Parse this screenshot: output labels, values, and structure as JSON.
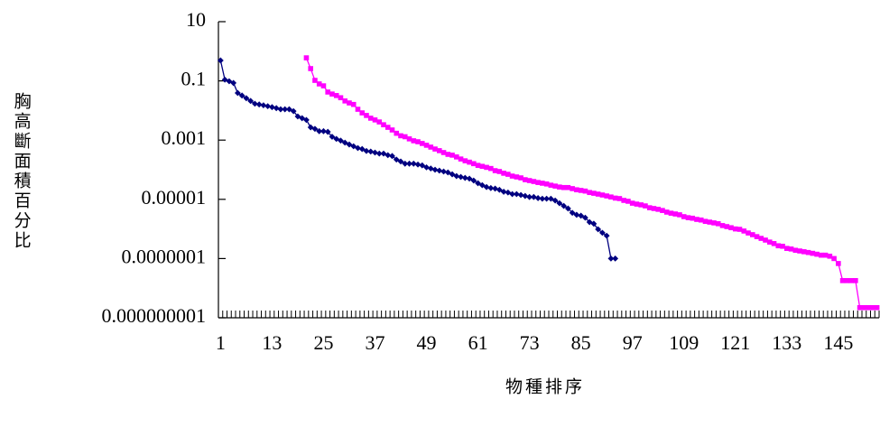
{
  "chart_data": {
    "type": "line",
    "y_label": "胸高斷面積百分比",
    "x_label": "物種排序",
    "log_y": true,
    "ylim": [
      1e-09,
      10
    ],
    "yticks": [
      10,
      0.1,
      0.001,
      1e-05,
      {
        "value": 1e-07,
        "label": "0.0000001"
      },
      {
        "value": 1e-09,
        "label": "0.000000001"
      }
    ],
    "categories": [
      "1",
      null,
      null,
      null,
      null,
      null,
      null,
      null,
      null,
      null,
      null,
      null,
      "13",
      null,
      null,
      null,
      null,
      null,
      null,
      null,
      null,
      null,
      null,
      null,
      "25",
      null,
      null,
      null,
      null,
      null,
      null,
      null,
      null,
      null,
      null,
      null,
      "37",
      null,
      null,
      null,
      null,
      null,
      null,
      null,
      null,
      null,
      null,
      null,
      "49",
      null,
      null,
      null,
      null,
      null,
      null,
      null,
      null,
      null,
      null,
      null,
      "61",
      null,
      null,
      null,
      null,
      null,
      null,
      null,
      null,
      null,
      null,
      null,
      "73",
      null,
      null,
      null,
      null,
      null,
      null,
      null,
      null,
      null,
      null,
      null,
      "85",
      null,
      null,
      null,
      null,
      null,
      null,
      null,
      null,
      null,
      null,
      null,
      "97",
      null,
      null,
      null,
      null,
      null,
      null,
      null,
      null,
      null,
      null,
      null,
      "109",
      null,
      null,
      null,
      null,
      null,
      null,
      null,
      null,
      null,
      null,
      null,
      "121",
      null,
      null,
      null,
      null,
      null,
      null,
      null,
      null,
      null,
      null,
      null,
      "133",
      null,
      null,
      null,
      null,
      null,
      null,
      null,
      null,
      null,
      null,
      null,
      "145",
      null,
      null,
      null,
      null,
      null,
      null,
      null,
      null,
      null
    ],
    "series": [
      {
        "color": "#000080",
        "marker": "diamond",
        "values": [
          0.49,
          0.11,
          0.097,
          0.085,
          0.039,
          0.032,
          0.026,
          0.021,
          0.017,
          0.016,
          0.015,
          0.014,
          0.013,
          0.012,
          0.011,
          0.011,
          0.011,
          0.0095,
          0.0063,
          0.0055,
          0.0048,
          0.0027,
          0.0024,
          0.002,
          0.002,
          0.0019,
          0.0013,
          0.0011,
          0.00096,
          0.00082,
          0.00071,
          0.00062,
          0.00054,
          0.0005,
          0.00043,
          0.00041,
          0.00038,
          0.00035,
          0.00035,
          0.00031,
          0.00029,
          0.00022,
          0.00019,
          0.00016,
          0.00016,
          0.00016,
          0.00015,
          0.00014,
          0.00012,
          0.00011,
          0.0001,
          9.3e-05,
          8.7e-05,
          8.1e-05,
          7e-05,
          6.1e-05,
          5.7e-05,
          5.3e-05,
          5e-05,
          4.3e-05,
          3.5e-05,
          3e-05,
          2.6e-05,
          2.4e-05,
          2.3e-05,
          2.1e-05,
          1.8e-05,
          1.7e-05,
          1.5e-05,
          1.5e-05,
          1.4e-05,
          1.3e-05,
          1.2e-05,
          1.2e-05,
          1.1e-05,
          1.05e-05,
          1.05e-05,
          1.05e-05,
          9.1e-06,
          7.4e-06,
          6e-06,
          4.9e-06,
          3.5e-06,
          3e-06,
          2.8e-06,
          2.4e-06,
          1.7e-06,
          1.5e-06,
          9.7e-07,
          7.4e-07,
          5.9e-07,
          1e-07,
          1e-07,
          null,
          null,
          null,
          null,
          null,
          null,
          null,
          null,
          null,
          null,
          null,
          null,
          null,
          null,
          null,
          null,
          null,
          null,
          null,
          null,
          null,
          null,
          null,
          null,
          null,
          null,
          null,
          null,
          null,
          null,
          null,
          null,
          null,
          null,
          null,
          null,
          null,
          null,
          null,
          null,
          null,
          null,
          null,
          null,
          null,
          null,
          null,
          null,
          null,
          null,
          null,
          null,
          null,
          null,
          null,
          null,
          null,
          null,
          null,
          null,
          null
        ]
      },
      {
        "color": "#ff00ff",
        "marker": "square",
        "values": [
          null,
          null,
          null,
          null,
          null,
          null,
          null,
          null,
          null,
          null,
          null,
          null,
          null,
          null,
          null,
          null,
          null,
          null,
          null,
          null,
          0.6,
          0.26,
          0.104,
          0.079,
          0.068,
          0.042,
          0.036,
          0.032,
          0.027,
          0.021,
          0.018,
          0.016,
          0.011,
          0.0083,
          0.0068,
          0.0055,
          0.0048,
          0.0041,
          0.0033,
          0.0027,
          0.0022,
          0.0017,
          0.0014,
          0.0013,
          0.0011,
          0.00095,
          0.00088,
          0.00077,
          0.00067,
          0.00058,
          0.0005,
          0.00044,
          0.00038,
          0.00033,
          0.00031,
          0.00027,
          0.00023,
          0.0002,
          0.00018,
          0.00016,
          0.00014,
          0.00013,
          0.00012,
          0.00011,
          9.3e-05,
          8.7e-05,
          7.6e-05,
          7e-05,
          6.1e-05,
          5.7e-05,
          5.3e-05,
          4.6e-05,
          4.3e-05,
          4e-05,
          3.7e-05,
          3.5e-05,
          3.3e-05,
          3e-05,
          2.8e-05,
          2.6e-05,
          2.5e-05,
          2.5e-05,
          2.3e-05,
          2.1e-05,
          2e-05,
          1.9e-05,
          1.7e-05,
          1.6e-05,
          1.5e-05,
          1.4e-05,
          1.3e-05,
          1.2e-05,
          1.1e-05,
          1.06e-05,
          9.2e-06,
          8.6e-06,
          7.4e-06,
          6.9e-06,
          6.5e-06,
          6e-06,
          5.2e-06,
          4.9e-06,
          4.6e-06,
          4.2e-06,
          3.7e-06,
          3.4e-06,
          3.2e-06,
          3e-06,
          2.6e-06,
          2.4e-06,
          2.3e-06,
          2.1e-06,
          2e-06,
          1.8e-06,
          1.7e-06,
          1.6e-06,
          1.5e-06,
          1.3e-06,
          1.2e-06,
          1.1e-06,
          1e-06,
          9.7e-07,
          8.5e-07,
          7.3e-07,
          6.4e-07,
          5.5e-07,
          4.8e-07,
          4.2e-07,
          3.6e-07,
          3.2e-07,
          2.7e-07,
          2.6e-07,
          2.2e-07,
          2.1e-07,
          1.9e-07,
          1.8e-07,
          1.7e-07,
          1.6e-07,
          1.5e-07,
          1.4e-07,
          1.3e-07,
          1.3e-07,
          1.2e-07,
          1e-07,
          6.8e-08,
          1.8e-08,
          1.8e-08,
          1.8e-08,
          1.8e-08,
          2.2e-09,
          2.2e-09,
          2.2e-09,
          2.2e-09,
          2.2e-09
        ]
      }
    ]
  }
}
